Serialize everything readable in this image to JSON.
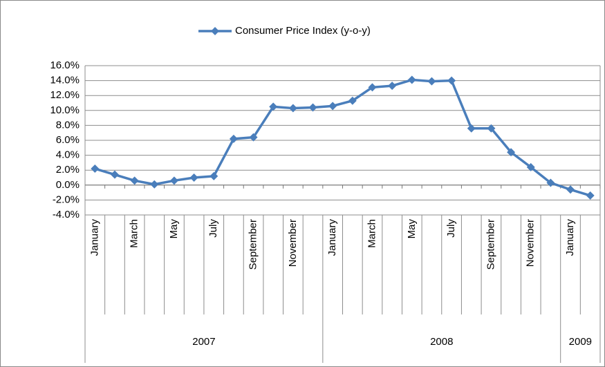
{
  "chart_data": {
    "type": "line",
    "categories": [
      "January",
      null,
      "March",
      null,
      "May",
      null,
      "July",
      null,
      "September",
      null,
      "November",
      null,
      "January",
      null,
      "March",
      null,
      "May",
      null,
      "July",
      null,
      "September",
      null,
      "November",
      null,
      "January",
      null
    ],
    "x_groups": [
      "2007",
      "2008",
      "2009"
    ],
    "series": [
      {
        "name": "Consumer Price Index (y-o-y)",
        "color": "#4a7ebb",
        "values": [
          2.2,
          1.4,
          0.6,
          0.1,
          0.6,
          1.0,
          1.2,
          6.2,
          6.4,
          10.5,
          10.3,
          10.4,
          10.6,
          11.3,
          13.1,
          13.3,
          14.1,
          13.9,
          14.0,
          7.6,
          7.6,
          4.4,
          2.4,
          0.3,
          -0.6,
          -1.4
        ]
      }
    ],
    "ylim": [
      -4,
      16
    ],
    "yticks": [
      {
        "value": -4,
        "label": "-4.0%"
      },
      {
        "value": -2,
        "label": "-2.0%"
      },
      {
        "value": 0,
        "label": "0.0%"
      },
      {
        "value": 2,
        "label": "2.0%"
      },
      {
        "value": 4,
        "label": "4.0%"
      },
      {
        "value": 6,
        "label": "6.0%"
      },
      {
        "value": 8,
        "label": "8.0%"
      },
      {
        "value": 10,
        "label": "10.0%"
      },
      {
        "value": 12,
        "label": "12.0%"
      },
      {
        "value": 14,
        "label": "14.0%"
      },
      {
        "value": 16,
        "label": "16.0%"
      }
    ],
    "grid": true,
    "legend": "top"
  }
}
